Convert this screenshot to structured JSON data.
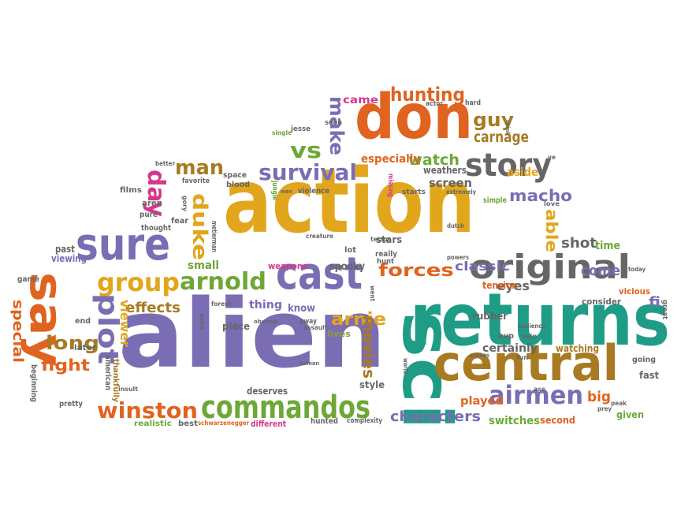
{
  "colors": {
    "purple": "#7a6db3",
    "gold": "#e2a61d",
    "orange": "#e0631f",
    "teal": "#1f9c86",
    "brown": "#a87a22",
    "green": "#6da836",
    "gray": "#666666",
    "pink": "#d6378c",
    "blue": "#3c7fc2",
    "olive": "#8e9b3d"
  },
  "words": [
    {
      "text": "action",
      "color": "gold"
    },
    {
      "text": "alien",
      "color": "purple"
    },
    {
      "text": "returns",
      "color": "teal"
    },
    {
      "text": "sci",
      "color": "teal"
    },
    {
      "text": "don",
      "color": "orange"
    },
    {
      "text": "central",
      "color": "brown"
    },
    {
      "text": "cast",
      "color": "purple"
    },
    {
      "text": "sure",
      "color": "purple"
    },
    {
      "text": "say",
      "color": "orange"
    },
    {
      "text": "original",
      "color": "gray"
    },
    {
      "text": "story",
      "color": "gray"
    },
    {
      "text": "commandos",
      "color": "green"
    },
    {
      "text": "group",
      "color": "gold"
    },
    {
      "text": "arnold",
      "color": "green"
    },
    {
      "text": "winston",
      "color": "orange"
    },
    {
      "text": "airmen",
      "color": "purple"
    },
    {
      "text": "plot",
      "color": "purple"
    },
    {
      "text": "survival",
      "color": "purple"
    },
    {
      "text": "day",
      "color": "pink"
    },
    {
      "text": "man",
      "color": "brown"
    },
    {
      "text": "duke",
      "color": "gold"
    },
    {
      "text": "vs",
      "color": "green"
    },
    {
      "text": "make",
      "color": "purple"
    },
    {
      "text": "hunting",
      "color": "orange"
    },
    {
      "text": "guy",
      "color": "brown"
    },
    {
      "text": "carnage",
      "color": "brown"
    },
    {
      "text": "forces",
      "color": "orange"
    },
    {
      "text": "long",
      "color": "brown"
    },
    {
      "text": "fight",
      "color": "orange"
    },
    {
      "text": "arnie",
      "color": "gold"
    },
    {
      "text": "movies",
      "color": "brown"
    },
    {
      "text": "macho",
      "color": "purple"
    },
    {
      "text": "watch",
      "color": "green"
    },
    {
      "text": "able",
      "color": "gold"
    },
    {
      "text": "classic",
      "color": "purple"
    },
    {
      "text": "come",
      "color": "purple"
    },
    {
      "text": "characters",
      "color": "purple"
    },
    {
      "text": "effects",
      "color": "brown"
    },
    {
      "text": "special",
      "color": "orange"
    },
    {
      "text": "viewer",
      "color": "gold"
    },
    {
      "text": "shot",
      "color": "gray"
    },
    {
      "text": "eyes",
      "color": "gray"
    },
    {
      "text": "big",
      "color": "orange"
    },
    {
      "text": "fi",
      "color": "purple"
    },
    {
      "text": "time",
      "color": "green"
    },
    {
      "text": "screen",
      "color": "gray"
    },
    {
      "text": "especially",
      "color": "orange"
    },
    {
      "text": "came",
      "color": "pink"
    },
    {
      "text": "aside",
      "color": "gold"
    },
    {
      "text": "rubber",
      "color": "gray"
    },
    {
      "text": "weathers",
      "color": "gray"
    },
    {
      "text": "tension",
      "color": "orange"
    },
    {
      "text": "certainly",
      "color": "gray"
    },
    {
      "text": "played",
      "color": "orange"
    },
    {
      "text": "switches",
      "color": "green"
    },
    {
      "text": "watching",
      "color": "brown"
    },
    {
      "text": "given",
      "color": "green"
    },
    {
      "text": "fast",
      "color": "gray"
    },
    {
      "text": "second",
      "color": "orange"
    },
    {
      "text": "going",
      "color": "gray"
    },
    {
      "text": "consider",
      "color": "gray"
    },
    {
      "text": "vicious",
      "color": "orange"
    },
    {
      "text": "thing",
      "color": "purple"
    },
    {
      "text": "know",
      "color": "purple"
    },
    {
      "text": "lives",
      "color": "olive"
    },
    {
      "text": "place",
      "color": "gray"
    },
    {
      "text": "deserves",
      "color": "gray"
    },
    {
      "text": "style",
      "color": "gray"
    },
    {
      "text": "small",
      "color": "green"
    },
    {
      "text": "stars",
      "color": "gray"
    },
    {
      "text": "really",
      "color": "gray"
    },
    {
      "text": "hunt",
      "color": "gray"
    },
    {
      "text": "spooky",
      "color": "gray"
    },
    {
      "text": "lot",
      "color": "gray"
    },
    {
      "text": "weapons",
      "color": "pink"
    },
    {
      "text": "viewing",
      "color": "purple"
    },
    {
      "text": "past",
      "color": "gray"
    },
    {
      "text": "game",
      "color": "gray"
    },
    {
      "text": "end",
      "color": "gray"
    },
    {
      "text": "later",
      "color": "gray"
    },
    {
      "text": "american",
      "color": "gray"
    },
    {
      "text": "thankfully",
      "color": "brown"
    },
    {
      "text": "beginning",
      "color": "gray"
    },
    {
      "text": "pretty",
      "color": "gray"
    },
    {
      "text": "realistic",
      "color": "green"
    },
    {
      "text": "best",
      "color": "gray"
    },
    {
      "text": "schwarzenegger",
      "color": "orange"
    },
    {
      "text": "different",
      "color": "pink"
    },
    {
      "text": "hunted",
      "color": "gray"
    },
    {
      "text": "complexity",
      "color": "gray"
    },
    {
      "text": "films",
      "color": "gray"
    },
    {
      "text": "aren",
      "color": "gray"
    },
    {
      "text": "pure",
      "color": "gray"
    },
    {
      "text": "thought",
      "color": "gray"
    },
    {
      "text": "fear",
      "color": "gray"
    },
    {
      "text": "favorite",
      "color": "gray"
    },
    {
      "text": "better",
      "color": "gray"
    },
    {
      "text": "space",
      "color": "gray"
    },
    {
      "text": "blood",
      "color": "gray"
    },
    {
      "text": "violence",
      "color": "gray"
    },
    {
      "text": "jungle",
      "color": "green"
    },
    {
      "text": "missing",
      "color": "pink"
    },
    {
      "text": "jesse",
      "color": "gray"
    },
    {
      "text": "single",
      "color": "green"
    },
    {
      "text": "seen",
      "color": "gray"
    },
    {
      "text": "starts",
      "color": "gray"
    },
    {
      "text": "extremely",
      "color": "gray"
    },
    {
      "text": "simple",
      "color": "green"
    },
    {
      "text": "love",
      "color": "gray"
    },
    {
      "text": "help",
      "color": "gray"
    },
    {
      "text": "hard",
      "color": "gray"
    },
    {
      "text": "actor",
      "color": "gray"
    },
    {
      "text": "think",
      "color": "gray"
    },
    {
      "text": "terror",
      "color": "gray"
    },
    {
      "text": "creature",
      "color": "gray"
    },
    {
      "text": "went",
      "color": "gray"
    },
    {
      "text": "avp",
      "color": "gray"
    },
    {
      "text": "forest",
      "color": "gray"
    },
    {
      "text": "away",
      "color": "gray"
    },
    {
      "text": "assault",
      "color": "gray"
    },
    {
      "text": "obvious",
      "color": "gray"
    },
    {
      "text": "extra",
      "color": "gray"
    },
    {
      "text": "human",
      "color": "gray"
    },
    {
      "text": "insult",
      "color": "gray"
    },
    {
      "text": "ass",
      "color": "gray"
    },
    {
      "text": "prey",
      "color": "gray"
    },
    {
      "text": "peak",
      "color": "gray"
    },
    {
      "text": "today",
      "color": "gray"
    },
    {
      "text": "great",
      "color": "gray"
    },
    {
      "text": "powers",
      "color": "gray"
    },
    {
      "text": "dutch",
      "color": "gray"
    },
    {
      "text": "audience",
      "color": "gray"
    },
    {
      "text": "fun",
      "color": "gray"
    },
    {
      "text": "scenes",
      "color": "gray"
    },
    {
      "text": "world",
      "color": "gray"
    },
    {
      "text": "gory",
      "color": "gray"
    },
    {
      "text": "ve",
      "color": "gray"
    },
    {
      "text": "men",
      "color": "gray"
    },
    {
      "text": "metierman",
      "color": "gray"
    }
  ]
}
